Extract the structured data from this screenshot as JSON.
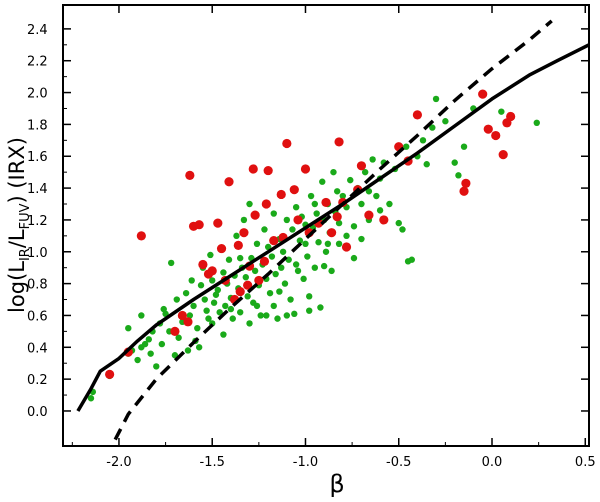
{
  "chart_data": {
    "type": "scatter",
    "title": "",
    "xlabel": "β",
    "ylabel_parts": {
      "main": "log(L",
      "sub1": "IR",
      "mid": "/L",
      "sub2": "FUV",
      "tail": ") (IRX)"
    },
    "xlim": [
      -2.3,
      0.52
    ],
    "ylim": [
      -0.22,
      2.55
    ],
    "x_ticks": [
      -2.0,
      -1.5,
      -1.0,
      -0.5,
      0.0,
      0.5
    ],
    "x_tick_labels": [
      "-2.0",
      "-1.5",
      "-1.0",
      "-0.5",
      "0.0",
      "0.5"
    ],
    "y_ticks": [
      0.0,
      0.2,
      0.4,
      0.6,
      0.8,
      1.0,
      1.2,
      1.4,
      1.6,
      1.8,
      2.0,
      2.2,
      2.4
    ],
    "y_tick_labels": [
      "0.0",
      "0.2",
      "0.4",
      "0.6",
      "0.8",
      "1.0",
      "1.2",
      "1.4",
      "1.6",
      "1.8",
      "2.0",
      "2.2",
      "2.4"
    ],
    "grid": false,
    "legend": "none",
    "colors": {
      "green": "#1aaa1a",
      "red": "#e01010",
      "line": "#000000"
    },
    "series": [
      {
        "marker": "green-dot",
        "points": [
          [
            -2.15,
            0.08
          ],
          [
            -2.14,
            0.12
          ],
          [
            -2.05,
            0.22
          ],
          [
            -1.95,
            0.36
          ],
          [
            -1.93,
            0.38
          ],
          [
            -1.9,
            0.32
          ],
          [
            -1.88,
            0.4
          ],
          [
            -1.86,
            0.42
          ],
          [
            -1.84,
            0.45
          ],
          [
            -1.83,
            0.36
          ],
          [
            -1.82,
            0.5
          ],
          [
            -1.8,
            0.28
          ],
          [
            -1.78,
            0.55
          ],
          [
            -1.77,
            0.42
          ],
          [
            -1.75,
            0.61
          ],
          [
            -1.73,
            0.5
          ],
          [
            -1.72,
            0.93
          ],
          [
            -1.7,
            0.35
          ],
          [
            -1.68,
            0.46
          ],
          [
            -1.66,
            0.56
          ],
          [
            -1.64,
            0.74
          ],
          [
            -1.63,
            0.38
          ],
          [
            -1.62,
            0.6
          ],
          [
            -1.6,
            0.66
          ],
          [
            -1.58,
            0.52
          ],
          [
            -1.57,
            0.4
          ],
          [
            -1.56,
            0.79
          ],
          [
            -1.55,
            0.9
          ],
          [
            -1.54,
            0.7
          ],
          [
            -1.53,
            0.63
          ],
          [
            -1.52,
            0.58
          ],
          [
            -1.51,
            0.98
          ],
          [
            -1.5,
            0.82
          ],
          [
            -1.49,
            0.68
          ],
          [
            -1.48,
            0.73
          ],
          [
            -1.47,
            0.76
          ],
          [
            -1.46,
            0.62
          ],
          [
            -1.45,
            1.02
          ],
          [
            -1.44,
            0.87
          ],
          [
            -1.43,
            0.66
          ],
          [
            -1.42,
            0.8
          ],
          [
            -1.41,
            0.95
          ],
          [
            -1.4,
            0.71
          ],
          [
            -1.39,
            0.58
          ],
          [
            -1.38,
            0.85
          ],
          [
            -1.37,
            1.1
          ],
          [
            -1.36,
            0.77
          ],
          [
            -1.35,
            0.62
          ],
          [
            -1.34,
            0.9
          ],
          [
            -1.33,
            1.2
          ],
          [
            -1.32,
            0.84
          ],
          [
            -1.31,
            0.72
          ],
          [
            -1.3,
            1.3
          ],
          [
            -1.29,
            0.96
          ],
          [
            -1.28,
            0.68
          ],
          [
            -1.27,
            0.88
          ],
          [
            -1.26,
            1.05
          ],
          [
            -1.25,
            0.79
          ],
          [
            -1.24,
            0.6
          ],
          [
            -1.23,
            0.92
          ],
          [
            -1.22,
            1.14
          ],
          [
            -1.21,
            0.83
          ],
          [
            -1.2,
            1.03
          ],
          [
            -1.19,
            0.74
          ],
          [
            -1.18,
            0.97
          ],
          [
            -1.17,
            1.24
          ],
          [
            -1.16,
            0.86
          ],
          [
            -1.15,
            0.58
          ],
          [
            -1.14,
            1.08
          ],
          [
            -1.13,
            0.9
          ],
          [
            -1.12,
            1.0
          ],
          [
            -1.11,
            0.8
          ],
          [
            -1.1,
            1.2
          ],
          [
            -1.09,
            0.95
          ],
          [
            -1.08,
            0.7
          ],
          [
            -1.07,
            1.14
          ],
          [
            -1.06,
            0.61
          ],
          [
            -1.05,
            1.28
          ],
          [
            -1.04,
            0.88
          ],
          [
            -1.03,
            1.07
          ],
          [
            -1.02,
            1.22
          ],
          [
            -1.01,
            0.83
          ],
          [
            -1.0,
            1.17
          ],
          [
            -0.99,
            0.97
          ],
          [
            -0.98,
            0.72
          ],
          [
            -0.97,
            1.35
          ],
          [
            -0.96,
            1.15
          ],
          [
            -0.95,
            0.9
          ],
          [
            -0.94,
            1.24
          ],
          [
            -0.93,
            1.06
          ],
          [
            -0.92,
            0.65
          ],
          [
            -0.91,
            1.44
          ],
          [
            -0.9,
            1.2
          ],
          [
            -0.89,
            1.0
          ],
          [
            -0.88,
            1.3
          ],
          [
            -0.87,
            1.12
          ],
          [
            -0.86,
            0.88
          ],
          [
            -0.85,
            1.5
          ],
          [
            -0.84,
            1.25
          ],
          [
            -0.83,
            1.38
          ],
          [
            -0.82,
            1.18
          ],
          [
            -0.8,
            1.35
          ],
          [
            -0.78,
            1.28
          ],
          [
            -0.76,
            1.45
          ],
          [
            -0.74,
            1.16
          ],
          [
            -0.72,
            1.4
          ],
          [
            -0.7,
            1.3
          ],
          [
            -0.68,
            1.5
          ],
          [
            -0.66,
            1.2
          ],
          [
            -0.64,
            1.58
          ],
          [
            -0.62,
            1.35
          ],
          [
            -0.6,
            1.46
          ],
          [
            -0.58,
            1.56
          ],
          [
            -0.55,
            1.3
          ],
          [
            -0.52,
            1.52
          ],
          [
            -0.5,
            1.18
          ],
          [
            -0.48,
            1.14
          ],
          [
            -0.46,
            1.66
          ],
          [
            -0.45,
            0.94
          ],
          [
            -0.43,
            0.95
          ],
          [
            -0.4,
            1.6
          ],
          [
            -0.37,
            1.7
          ],
          [
            -0.35,
            1.55
          ],
          [
            -0.32,
            1.78
          ],
          [
            -0.3,
            1.96
          ],
          [
            -0.25,
            1.82
          ],
          [
            -0.2,
            1.56
          ],
          [
            -0.18,
            1.48
          ],
          [
            -0.15,
            1.66
          ],
          [
            -0.1,
            1.9
          ],
          [
            0.05,
            1.88
          ],
          [
            0.24,
            1.81
          ],
          [
            -1.95,
            0.52
          ],
          [
            -1.88,
            0.6
          ],
          [
            -1.76,
            0.64
          ],
          [
            -1.69,
            0.7
          ],
          [
            -1.61,
            0.82
          ],
          [
            -1.59,
            0.44
          ],
          [
            -1.5,
            0.55
          ],
          [
            -1.44,
            0.48
          ],
          [
            -1.4,
            0.64
          ],
          [
            -1.35,
            0.96
          ],
          [
            -1.3,
            0.55
          ],
          [
            -1.26,
            0.66
          ],
          [
            -1.21,
            0.6
          ],
          [
            -1.17,
            0.66
          ],
          [
            -1.14,
            0.75
          ],
          [
            -1.1,
            0.6
          ],
          [
            -1.05,
            0.92
          ],
          [
            -1.0,
            1.05
          ],
          [
            -0.98,
            0.63
          ],
          [
            -0.95,
            1.3
          ],
          [
            -0.9,
            0.91
          ],
          [
            -0.88,
            1.05
          ],
          [
            -0.82,
            1.05
          ],
          [
            -0.78,
            1.1
          ],
          [
            -0.74,
            0.96
          ],
          [
            -0.7,
            1.08
          ],
          [
            -0.66,
            1.38
          ],
          [
            -0.6,
            1.26
          ]
        ]
      },
      {
        "marker": "red-dot",
        "points": [
          [
            -2.05,
            0.23
          ],
          [
            -1.95,
            0.37
          ],
          [
            -1.88,
            1.1
          ],
          [
            -1.7,
            0.5
          ],
          [
            -1.66,
            0.6
          ],
          [
            -1.63,
            0.56
          ],
          [
            -1.62,
            1.48
          ],
          [
            -1.6,
            1.16
          ],
          [
            -1.57,
            1.17
          ],
          [
            -1.55,
            0.92
          ],
          [
            -1.52,
            0.86
          ],
          [
            -1.5,
            0.88
          ],
          [
            -1.47,
            1.18
          ],
          [
            -1.45,
            1.02
          ],
          [
            -1.43,
            0.82
          ],
          [
            -1.41,
            1.44
          ],
          [
            -1.38,
            0.7
          ],
          [
            -1.36,
            1.04
          ],
          [
            -1.35,
            0.75
          ],
          [
            -1.33,
            1.12
          ],
          [
            -1.31,
            0.79
          ],
          [
            -1.3,
            0.91
          ],
          [
            -1.28,
            1.52
          ],
          [
            -1.27,
            1.23
          ],
          [
            -1.25,
            0.82
          ],
          [
            -1.22,
            0.94
          ],
          [
            -1.21,
            1.3
          ],
          [
            -1.2,
            1.51
          ],
          [
            -1.17,
            1.07
          ],
          [
            -1.13,
            1.36
          ],
          [
            -1.12,
            1.09
          ],
          [
            -1.1,
            1.68
          ],
          [
            -1.06,
            1.39
          ],
          [
            -1.04,
            1.2
          ],
          [
            -1.0,
            1.52
          ],
          [
            -0.98,
            1.12
          ],
          [
            -0.93,
            1.18
          ],
          [
            -0.89,
            1.31
          ],
          [
            -0.86,
            1.12
          ],
          [
            -0.83,
            1.22
          ],
          [
            -0.82,
            1.69
          ],
          [
            -0.8,
            1.31
          ],
          [
            -0.78,
            1.03
          ],
          [
            -0.72,
            1.39
          ],
          [
            -0.7,
            1.54
          ],
          [
            -0.66,
            1.23
          ],
          [
            -0.58,
            1.2
          ],
          [
            -0.5,
            1.66
          ],
          [
            -0.45,
            1.57
          ],
          [
            -0.4,
            1.86
          ],
          [
            -0.15,
            1.38
          ],
          [
            -0.14,
            1.43
          ],
          [
            -0.05,
            1.99
          ],
          [
            -0.02,
            1.77
          ],
          [
            0.02,
            1.73
          ],
          [
            0.06,
            1.61
          ],
          [
            0.08,
            1.81
          ],
          [
            0.1,
            1.85
          ]
        ]
      },
      {
        "name_hint": "solid-curve",
        "style": "solid",
        "points": [
          [
            -2.22,
            0.0
          ],
          [
            -2.15,
            0.14
          ],
          [
            -2.1,
            0.25
          ],
          [
            -2.0,
            0.33
          ],
          [
            -1.9,
            0.44
          ],
          [
            -1.8,
            0.54
          ],
          [
            -1.6,
            0.7
          ],
          [
            -1.4,
            0.85
          ],
          [
            -1.2,
            1.0
          ],
          [
            -1.0,
            1.15
          ],
          [
            -0.8,
            1.3
          ],
          [
            -0.6,
            1.46
          ],
          [
            -0.4,
            1.62
          ],
          [
            -0.2,
            1.79
          ],
          [
            0.0,
            1.96
          ],
          [
            0.2,
            2.11
          ],
          [
            0.35,
            2.2
          ],
          [
            0.52,
            2.3
          ]
        ]
      },
      {
        "name_hint": "dashed-curve",
        "style": "dashed",
        "points": [
          [
            -2.02,
            -0.18
          ],
          [
            -1.95,
            -0.02
          ],
          [
            -1.8,
            0.2
          ],
          [
            -1.6,
            0.43
          ],
          [
            -1.4,
            0.65
          ],
          [
            -1.2,
            0.86
          ],
          [
            -1.0,
            1.08
          ],
          [
            -0.8,
            1.3
          ],
          [
            -0.6,
            1.52
          ],
          [
            -0.4,
            1.73
          ],
          [
            -0.2,
            1.95
          ],
          [
            0.0,
            2.15
          ],
          [
            0.2,
            2.33
          ],
          [
            0.32,
            2.45
          ]
        ]
      }
    ]
  }
}
